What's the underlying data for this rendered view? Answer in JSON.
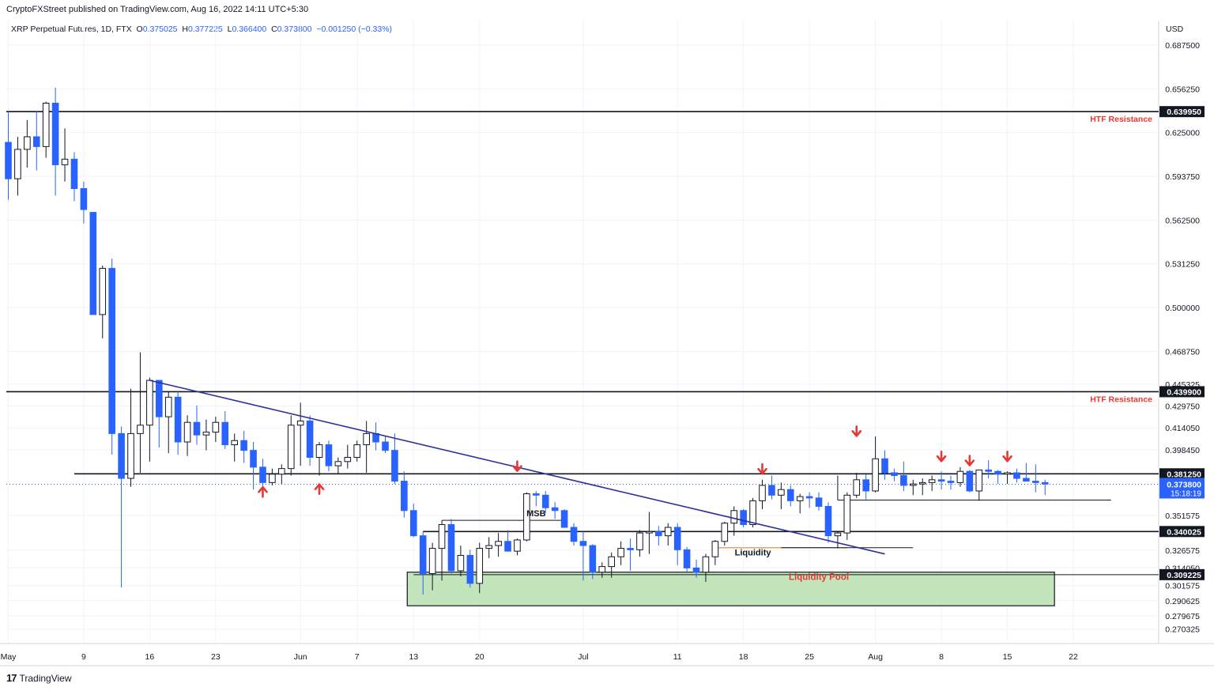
{
  "header": {
    "published": "CryptoFXStreet published on TradingView.com, Aug 16, 2022 14:11 UTC+5:30",
    "symbol": "XRP Perpetual Futures, 1D, FTX",
    "o_label": "O",
    "o": "0.375025",
    "h_label": "H",
    "h": "0.377225",
    "l_label": "L",
    "l": "0.366400",
    "c_label": "C",
    "c": "0.373800",
    "change": "−0.001250 (−0.33%)"
  },
  "brand": {
    "logo": "17",
    "name": "TradingView",
    "icon": "tradingview-logo-icon"
  },
  "chart_data": {
    "type": "candlestick",
    "currency": "USD",
    "ylim": [
      0.26,
      0.705
    ],
    "y_ticks": [
      "0.687500",
      "0.656250",
      "0.625000",
      "0.593750",
      "0.562500",
      "0.531250",
      "0.500000",
      "0.468750",
      "0.445325",
      "0.429750",
      "0.414050",
      "0.398450",
      "0.351575",
      "0.326575",
      "0.314050",
      "0.301575",
      "0.290625",
      "0.279675",
      "0.270325"
    ],
    "x_ticks": [
      {
        "label": "May",
        "day": 1
      },
      {
        "label": "9",
        "day": 9
      },
      {
        "label": "16",
        "day": 16
      },
      {
        "label": "23",
        "day": 23
      },
      {
        "label": "Jun",
        "day": 32
      },
      {
        "label": "7",
        "day": 38
      },
      {
        "label": "13",
        "day": 44
      },
      {
        "label": "20",
        "day": 51
      },
      {
        "label": "Jul",
        "day": 62
      },
      {
        "label": "11",
        "day": 72
      },
      {
        "label": "18",
        "day": 79
      },
      {
        "label": "25",
        "day": 86
      },
      {
        "label": "Aug",
        "day": 93
      },
      {
        "label": "8",
        "day": 100
      },
      {
        "label": "15",
        "day": 107
      },
      {
        "label": "22",
        "day": 114
      }
    ],
    "candles": [
      [
        0.618,
        0.64,
        0.577,
        0.592
      ],
      [
        0.592,
        0.622,
        0.58,
        0.613
      ],
      [
        0.613,
        0.634,
        0.6,
        0.622
      ],
      [
        0.622,
        0.64,
        0.598,
        0.615
      ],
      [
        0.615,
        0.647,
        0.607,
        0.646
      ],
      [
        0.646,
        0.657,
        0.58,
        0.602
      ],
      [
        0.602,
        0.628,
        0.59,
        0.606
      ],
      [
        0.606,
        0.611,
        0.576,
        0.585
      ],
      [
        0.585,
        0.59,
        0.56,
        0.57
      ],
      [
        0.568,
        0.568,
        0.495,
        0.495
      ],
      [
        0.495,
        0.53,
        0.478,
        0.528
      ],
      [
        0.528,
        0.535,
        0.395,
        0.41
      ],
      [
        0.41,
        0.415,
        0.3,
        0.378
      ],
      [
        0.378,
        0.442,
        0.372,
        0.41
      ],
      [
        0.41,
        0.468,
        0.382,
        0.416
      ],
      [
        0.416,
        0.45,
        0.39,
        0.448
      ],
      [
        0.448,
        0.448,
        0.4,
        0.422
      ],
      [
        0.422,
        0.44,
        0.396,
        0.436
      ],
      [
        0.436,
        0.44,
        0.395,
        0.404
      ],
      [
        0.404,
        0.423,
        0.394,
        0.418
      ],
      [
        0.418,
        0.43,
        0.402,
        0.409
      ],
      [
        0.409,
        0.42,
        0.398,
        0.411
      ],
      [
        0.411,
        0.422,
        0.404,
        0.418
      ],
      [
        0.418,
        0.426,
        0.399,
        0.402
      ],
      [
        0.402,
        0.41,
        0.39,
        0.405
      ],
      [
        0.405,
        0.412,
        0.389,
        0.398
      ],
      [
        0.398,
        0.404,
        0.37,
        0.386
      ],
      [
        0.386,
        0.392,
        0.372,
        0.375
      ],
      [
        0.375,
        0.385,
        0.373,
        0.381
      ],
      [
        0.381,
        0.388,
        0.374,
        0.385
      ],
      [
        0.385,
        0.423,
        0.38,
        0.416
      ],
      [
        0.416,
        0.432,
        0.387,
        0.419
      ],
      [
        0.419,
        0.423,
        0.387,
        0.393
      ],
      [
        0.393,
        0.404,
        0.38,
        0.402
      ],
      [
        0.402,
        0.405,
        0.383,
        0.387
      ],
      [
        0.387,
        0.393,
        0.381,
        0.39
      ],
      [
        0.39,
        0.402,
        0.385,
        0.393
      ],
      [
        0.393,
        0.405,
        0.39,
        0.402
      ],
      [
        0.402,
        0.419,
        0.382,
        0.41
      ],
      [
        0.41,
        0.418,
        0.398,
        0.404
      ],
      [
        0.404,
        0.408,
        0.396,
        0.398
      ],
      [
        0.398,
        0.41,
        0.374,
        0.376
      ],
      [
        0.376,
        0.383,
        0.35,
        0.355
      ],
      [
        0.355,
        0.36,
        0.336,
        0.337
      ],
      [
        0.337,
        0.34,
        0.295,
        0.31
      ],
      [
        0.31,
        0.332,
        0.298,
        0.328
      ],
      [
        0.328,
        0.348,
        0.305,
        0.345
      ],
      [
        0.345,
        0.349,
        0.31,
        0.312
      ],
      [
        0.312,
        0.33,
        0.308,
        0.323
      ],
      [
        0.323,
        0.327,
        0.3,
        0.303
      ],
      [
        0.303,
        0.332,
        0.296,
        0.328
      ],
      [
        0.328,
        0.336,
        0.321,
        0.33
      ],
      [
        0.33,
        0.339,
        0.322,
        0.333
      ],
      [
        0.333,
        0.341,
        0.326,
        0.326
      ],
      [
        0.326,
        0.335,
        0.323,
        0.334
      ],
      [
        0.334,
        0.368,
        0.333,
        0.367
      ],
      [
        0.367,
        0.369,
        0.358,
        0.366
      ],
      [
        0.366,
        0.369,
        0.353,
        0.357
      ],
      [
        0.357,
        0.361,
        0.349,
        0.355
      ],
      [
        0.355,
        0.356,
        0.343,
        0.343
      ],
      [
        0.343,
        0.346,
        0.33,
        0.333
      ],
      [
        0.333,
        0.34,
        0.305,
        0.33
      ],
      [
        0.33,
        0.331,
        0.306,
        0.311
      ],
      [
        0.311,
        0.318,
        0.307,
        0.315
      ],
      [
        0.315,
        0.325,
        0.307,
        0.322
      ],
      [
        0.322,
        0.333,
        0.316,
        0.328
      ],
      [
        0.328,
        0.335,
        0.312,
        0.327
      ],
      [
        0.327,
        0.341,
        0.322,
        0.339
      ],
      [
        0.339,
        0.354,
        0.324,
        0.34
      ],
      [
        0.34,
        0.344,
        0.33,
        0.337
      ],
      [
        0.337,
        0.346,
        0.33,
        0.343
      ],
      [
        0.343,
        0.346,
        0.316,
        0.327
      ],
      [
        0.327,
        0.329,
        0.311,
        0.314
      ],
      [
        0.314,
        0.32,
        0.307,
        0.311
      ],
      [
        0.311,
        0.324,
        0.304,
        0.322
      ],
      [
        0.322,
        0.334,
        0.316,
        0.333
      ],
      [
        0.333,
        0.347,
        0.33,
        0.346
      ],
      [
        0.346,
        0.358,
        0.337,
        0.355
      ],
      [
        0.355,
        0.356,
        0.343,
        0.345
      ],
      [
        0.345,
        0.364,
        0.343,
        0.362
      ],
      [
        0.362,
        0.377,
        0.356,
        0.373
      ],
      [
        0.373,
        0.38,
        0.363,
        0.366
      ],
      [
        0.366,
        0.375,
        0.356,
        0.37
      ],
      [
        0.37,
        0.373,
        0.358,
        0.362
      ],
      [
        0.362,
        0.367,
        0.353,
        0.365
      ],
      [
        0.365,
        0.368,
        0.357,
        0.364
      ],
      [
        0.364,
        0.368,
        0.355,
        0.358
      ],
      [
        0.358,
        0.361,
        0.332,
        0.337
      ],
      [
        0.337,
        0.34,
        0.328,
        0.339
      ],
      [
        0.339,
        0.368,
        0.334,
        0.366
      ],
      [
        0.366,
        0.382,
        0.364,
        0.377
      ],
      [
        0.377,
        0.381,
        0.363,
        0.369
      ],
      [
        0.369,
        0.408,
        0.368,
        0.392
      ],
      [
        0.392,
        0.398,
        0.377,
        0.382
      ],
      [
        0.382,
        0.385,
        0.376,
        0.38
      ],
      [
        0.38,
        0.39,
        0.369,
        0.373
      ],
      [
        0.373,
        0.377,
        0.366,
        0.374
      ],
      [
        0.374,
        0.378,
        0.366,
        0.375
      ],
      [
        0.375,
        0.38,
        0.369,
        0.377
      ],
      [
        0.377,
        0.383,
        0.37,
        0.376
      ],
      [
        0.376,
        0.38,
        0.37,
        0.375
      ],
      [
        0.375,
        0.386,
        0.372,
        0.383
      ],
      [
        0.383,
        0.384,
        0.368,
        0.369
      ],
      [
        0.369,
        0.384,
        0.362,
        0.384
      ],
      [
        0.384,
        0.391,
        0.378,
        0.383
      ],
      [
        0.383,
        0.384,
        0.374,
        0.381
      ],
      [
        0.381,
        0.383,
        0.374,
        0.382
      ],
      [
        0.382,
        0.385,
        0.375,
        0.378
      ],
      [
        0.378,
        0.389,
        0.376,
        0.376
      ],
      [
        0.376,
        0.388,
        0.368,
        0.375
      ],
      [
        0.375,
        0.377,
        0.366,
        0.374
      ]
    ],
    "horizontal_levels": [
      {
        "value": 0.63995,
        "label": "0.639950",
        "annotation": "HTF Resistance"
      },
      {
        "value": 0.4399,
        "label": "0.439900",
        "annotation": "HTF Resistance"
      },
      {
        "value": 0.38125,
        "label": "0.381250",
        "annotation": ""
      },
      {
        "value": 0.340025,
        "label": "0.340025",
        "annotation": ""
      },
      {
        "value": 0.309225,
        "label": "0.309225",
        "annotation": ""
      }
    ],
    "current_price": {
      "value": 0.3738,
      "label": "0.373800",
      "countdown": "15:18:19"
    },
    "trendline": {
      "from": [
        16,
        0.448
      ],
      "to": [
        94,
        0.324
      ]
    },
    "annotations": [
      {
        "text": "MSB",
        "day": 57,
        "value": 0.351
      },
      {
        "text": "Liquidity",
        "day": 80,
        "value": 0.323
      },
      {
        "text": "Liquidity Pool",
        "day": 87,
        "value": 0.3055
      }
    ],
    "liquidity_pool_zone": {
      "from_day": 44,
      "to_day": 112,
      "top": 0.311,
      "bottom": 0.287
    },
    "msb_level": {
      "from_day": 47,
      "to_day": 60,
      "value": 0.348
    },
    "liquidity_level": {
      "from_day": 76,
      "to_day": 90,
      "value": 0.3285
    },
    "range_low_level": {
      "from_day": 89,
      "to_day": 118,
      "value": 0.3625
    },
    "arrows_up": [
      {
        "day": 28,
        "value": 0.37
      },
      {
        "day": 34,
        "value": 0.372
      }
    ],
    "arrows_down": [
      {
        "day": 55,
        "value": 0.385
      },
      {
        "day": 81,
        "value": 0.383
      },
      {
        "day": 91,
        "value": 0.41
      },
      {
        "day": 100,
        "value": 0.392
      },
      {
        "day": 103,
        "value": 0.389
      },
      {
        "day": 107,
        "value": 0.392
      }
    ],
    "colors": {
      "up_body": "#ffffff",
      "up_border": "#131722",
      "down_body": "#2962ff",
      "down_border": "#2962ff",
      "trendline": "#2f2f9f",
      "zone": "#b8e0b0",
      "annotation_red": "#e53935",
      "msb_line": "#131722",
      "liquidity_line": "#d9a86c"
    }
  }
}
